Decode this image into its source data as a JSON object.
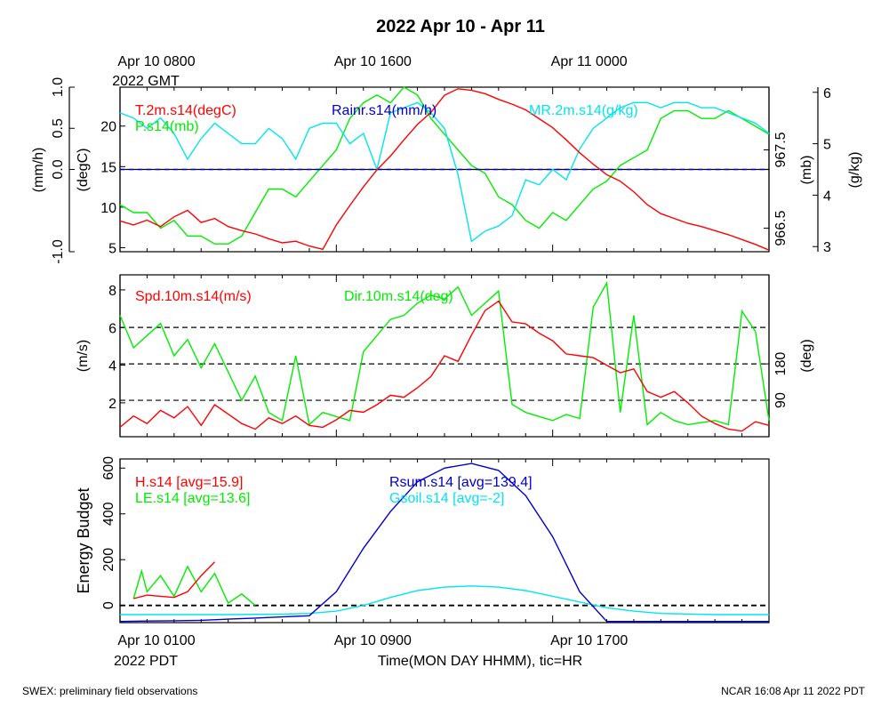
{
  "title": "2022 Apr 10 - Apr 11",
  "footer_left": "SWEX: preliminary field observations",
  "footer_right": "NCAR 16:08 Apr 11 2022 PDT",
  "top_time_labels": [
    {
      "hour": 0,
      "line1": "Apr 10 0800",
      "line2": "2022 GMT"
    },
    {
      "hour": 8,
      "line1": "Apr 10 1600",
      "line2": ""
    },
    {
      "hour": 16,
      "line1": "Apr 11 0000",
      "line2": ""
    }
  ],
  "bottom_time_labels": [
    {
      "hour": 0,
      "line1": "Apr 10 0100",
      "line2": "2022 PDT"
    },
    {
      "hour": 8,
      "line1": "Apr 10 0900",
      "line2": ""
    },
    {
      "hour": 16,
      "line1": "Apr 10 1700",
      "line2": ""
    }
  ],
  "xlabel": "Time(MON DAY HHMM), tic=HR",
  "colors": {
    "red": "#ff0000",
    "green": "#00ee00",
    "blue": "#0000cc",
    "cyan": "#00e5ee",
    "black": "#000000"
  },
  "chart_data": [
    {
      "type": "line",
      "id": "panel1",
      "xlim": [
        0,
        24
      ],
      "axes": {
        "left_outer": {
          "label": "(mm/h)",
          "ticks": [
            "1.0",
            "0.5",
            "0.0",
            "-1.0"
          ],
          "tick_values": [
            1.0,
            0.5,
            0.0,
            -1.0
          ],
          "lim": [
            -1.0,
            1.0
          ]
        },
        "left_inner": {
          "label": "(degC)",
          "ticks": [
            "20",
            "15",
            "10",
            "5"
          ],
          "tick_values": [
            20,
            15,
            10,
            5
          ],
          "lim": [
            4.5,
            24.8
          ]
        },
        "right_inner": {
          "label": "(mb)",
          "ticks": [
            "967.5",
            "966.5"
          ],
          "tick_values": [
            967.5,
            966.5
          ],
          "lim": [
            966.2,
            968.3
          ]
        },
        "right_outer": {
          "label": "(g/kg)",
          "ticks": [
            "6",
            "5",
            "4",
            "3"
          ],
          "tick_values": [
            6,
            5,
            4,
            3
          ],
          "lim": [
            2.9,
            6.1
          ]
        }
      },
      "zero_line": 0.0,
      "series": [
        {
          "name": "T.2m.s14(degC)",
          "color": "red",
          "axis": "left_inner",
          "x": [
            0,
            0.5,
            1,
            1.5,
            2,
            2.5,
            3,
            3.5,
            4,
            4.5,
            5,
            5.5,
            6,
            6.5,
            7,
            7.5,
            8,
            8.5,
            9,
            9.5,
            10,
            10.5,
            11,
            11.5,
            12,
            12.5,
            13,
            13.5,
            14,
            14.5,
            15,
            15.5,
            16,
            16.5,
            17,
            17.5,
            18,
            18.5,
            19,
            19.5,
            20,
            20.5,
            21,
            21.5,
            22,
            22.5,
            23,
            23.5,
            24
          ],
          "y": [
            8.3,
            7.8,
            8.4,
            7.6,
            8.8,
            9.6,
            8.1,
            8.6,
            7.6,
            7.1,
            6.7,
            6.1,
            5.6,
            5.8,
            5.2,
            4.8,
            7.8,
            10.2,
            12.5,
            14.6,
            16.3,
            18.3,
            20.2,
            21.7,
            23.8,
            24.6,
            24.4,
            24.0,
            23.3,
            22.7,
            22.0,
            20.9,
            19.8,
            18.3,
            16.7,
            15.3,
            14.0,
            13.2,
            11.9,
            10.3,
            9.2,
            8.6,
            8.0,
            7.6,
            7.1,
            6.6,
            6.0,
            5.4,
            4.7
          ]
        },
        {
          "name": "Rainr.s14(mm/h)",
          "color": "blue",
          "axis": "left_outer",
          "x": [
            0,
            24
          ],
          "y": [
            0.0,
            0.0
          ]
        },
        {
          "name": "MR.2m.s14(g/kg)",
          "color": "cyan",
          "axis": "right_outer",
          "x": [
            0,
            0.5,
            1,
            1.5,
            2,
            2.5,
            3,
            3.5,
            4,
            4.5,
            5,
            5.5,
            6,
            6.5,
            7,
            7.5,
            8,
            8.5,
            9,
            9.5,
            10,
            10.5,
            11,
            11.5,
            12,
            12.5,
            13,
            13.5,
            14,
            14.5,
            15,
            15.5,
            16,
            16.5,
            17,
            17.5,
            18,
            18.5,
            19,
            19.5,
            20,
            20.5,
            21,
            21.5,
            22,
            22.5,
            23,
            23.5,
            24
          ],
          "y": [
            5.6,
            5.5,
            5.3,
            5.5,
            5.2,
            4.7,
            5.1,
            5.4,
            5.2,
            5.0,
            5.0,
            5.3,
            5.1,
            4.7,
            5.3,
            5.4,
            5.4,
            5.0,
            5.2,
            4.5,
            5.6,
            5.7,
            5.8,
            5.6,
            5.3,
            4.4,
            3.1,
            3.3,
            3.4,
            3.6,
            4.3,
            4.2,
            4.5,
            4.3,
            4.9,
            5.3,
            5.5,
            5.7,
            5.8,
            5.8,
            5.7,
            5.8,
            5.8,
            5.7,
            5.7,
            5.6,
            5.5,
            5.4,
            5.2
          ]
        },
        {
          "name": "P.s14(mb)",
          "color": "green",
          "axis": "right_inner",
          "x": [
            0,
            0.5,
            1,
            1.5,
            2,
            2.5,
            3,
            3.5,
            4,
            4.5,
            5,
            5.5,
            6,
            6.5,
            7,
            7.5,
            8,
            8.5,
            9,
            9.5,
            10,
            10.5,
            11,
            11.5,
            12,
            12.5,
            13,
            13.5,
            14,
            14.5,
            15,
            15.5,
            16,
            16.5,
            17,
            17.5,
            18,
            18.5,
            19,
            19.5,
            20,
            20.5,
            21,
            21.5,
            22,
            22.5,
            23,
            23.5,
            24
          ],
          "y": [
            966.8,
            966.7,
            966.7,
            966.5,
            966.6,
            966.4,
            966.4,
            966.3,
            966.3,
            966.4,
            966.7,
            967.0,
            967.0,
            966.9,
            967.1,
            967.3,
            967.5,
            967.9,
            968.1,
            968.2,
            968.1,
            968.3,
            968.2,
            967.9,
            967.7,
            967.5,
            967.3,
            967.2,
            966.9,
            966.8,
            966.6,
            966.5,
            966.7,
            966.6,
            966.8,
            967.0,
            967.1,
            967.3,
            967.4,
            967.5,
            967.9,
            968.0,
            968.0,
            967.9,
            967.9,
            968.0,
            967.9,
            967.8,
            967.7
          ]
        }
      ]
    },
    {
      "type": "line",
      "id": "panel2",
      "xlim": [
        0,
        24
      ],
      "axes": {
        "left": {
          "label": "(m/s)",
          "ticks": [
            "8",
            "6",
            "4",
            "2"
          ],
          "tick_values": [
            8,
            6,
            4,
            2
          ],
          "lim": [
            0.2,
            8.8
          ]
        },
        "right": {
          "label": "(deg)",
          "ticks": [
            "180",
            "90"
          ],
          "tick_values": [
            180,
            90
          ],
          "lim": [
            0,
            400
          ]
        }
      },
      "dashed_lines_deg": [
        90,
        180,
        270
      ],
      "series": [
        {
          "name": "Spd.10m.s14(m/s)",
          "color": "red",
          "axis": "left",
          "x": [
            0,
            0.5,
            1,
            1.5,
            2,
            2.5,
            3,
            3.5,
            4,
            4.5,
            5,
            5.5,
            6,
            6.5,
            7,
            7.5,
            8,
            8.5,
            9,
            9.5,
            10,
            10.5,
            11,
            11.5,
            12,
            12.5,
            13,
            13.5,
            14,
            14.5,
            15,
            15.5,
            16,
            16.5,
            17,
            17.5,
            18,
            18.5,
            19,
            19.5,
            20,
            20.5,
            21,
            21.5,
            22,
            22.5,
            23,
            23.5,
            24
          ],
          "y": [
            0.7,
            1.3,
            0.9,
            1.6,
            1.2,
            1.8,
            0.8,
            1.9,
            1.4,
            0.9,
            0.6,
            1.2,
            0.9,
            1.3,
            0.8,
            0.7,
            1.1,
            1.6,
            1.5,
            1.9,
            2.4,
            2.3,
            2.8,
            3.4,
            4.5,
            4.2,
            5.6,
            6.9,
            7.4,
            6.3,
            6.2,
            5.7,
            5.3,
            4.6,
            4.5,
            4.4,
            4.0,
            3.6,
            3.8,
            2.6,
            2.3,
            2.6,
            2.0,
            1.3,
            0.9,
            0.6,
            0.5,
            1.0,
            0.8
          ]
        },
        {
          "name": "Dir.10m.s14(deg)",
          "color": "green",
          "axis": "right",
          "x": [
            0,
            0.5,
            1,
            1.5,
            2,
            2.5,
            3,
            3.5,
            4,
            4.5,
            5,
            5.5,
            6,
            6.5,
            7,
            7.5,
            8,
            8.5,
            9,
            9.5,
            10,
            10.5,
            11,
            11.5,
            12,
            12.5,
            13,
            13.5,
            14,
            14.5,
            15,
            15.5,
            16,
            16.5,
            17,
            17.5,
            18,
            18.5,
            19,
            19.5,
            20,
            20.5,
            21,
            21.5,
            22,
            22.5,
            23,
            23.5,
            24
          ],
          "y": [
            300,
            220,
            250,
            280,
            200,
            240,
            170,
            230,
            160,
            90,
            150,
            60,
            40,
            200,
            30,
            60,
            50,
            40,
            210,
            250,
            290,
            300,
            330,
            350,
            340,
            370,
            300,
            330,
            360,
            80,
            60,
            50,
            40,
            55,
            45,
            320,
            380,
            60,
            300,
            30,
            60,
            40,
            30,
            35,
            40,
            30,
            310,
            260,
            40
          ]
        }
      ]
    },
    {
      "type": "line",
      "id": "panel3",
      "xlim": [
        0,
        24
      ],
      "axes": {
        "left": {
          "label": "Energy Budget",
          "ticks": [
            "600",
            "400",
            "200",
            "0"
          ],
          "tick_values": [
            600,
            400,
            200,
            0
          ],
          "lim": [
            -75,
            640
          ]
        }
      },
      "zero_line": 0,
      "series": [
        {
          "name": "H.s14 [avg=15.9]",
          "color": "red",
          "axis": "left",
          "x": [
            0.5,
            1,
            1.5,
            2,
            2.5,
            3,
            3.5
          ],
          "y": [
            30,
            45,
            40,
            35,
            60,
            130,
            190
          ]
        },
        {
          "name": "LE.s14 [avg=13.6]",
          "color": "green",
          "axis": "left",
          "x": [
            0.5,
            0.8,
            1,
            1.5,
            2,
            2.5,
            3,
            3.5,
            4,
            4.5,
            5
          ],
          "y": [
            30,
            150,
            60,
            130,
            40,
            170,
            60,
            140,
            10,
            50,
            0
          ]
        },
        {
          "name": "Rsum.s14 [avg=139.4]",
          "color": "blue",
          "axis": "left",
          "x": [
            0,
            1,
            2,
            3,
            4,
            5,
            6,
            7,
            8,
            9,
            10,
            11,
            12,
            13,
            14,
            15,
            16,
            17,
            18,
            19,
            20,
            21,
            22,
            23,
            24
          ],
          "y": [
            -70,
            -68,
            -67,
            -65,
            -60,
            -55,
            -50,
            -45,
            60,
            250,
            410,
            540,
            600,
            620,
            590,
            480,
            300,
            60,
            -70,
            -70,
            -70,
            -70,
            -70,
            -70,
            -70
          ]
        },
        {
          "name": "Gsoil.s14 [avg=-2]",
          "color": "cyan",
          "axis": "left",
          "x": [
            0,
            2,
            4,
            6,
            7,
            8,
            9,
            10,
            11,
            12,
            13,
            14,
            15,
            16,
            17,
            18,
            19,
            20,
            22,
            24
          ],
          "y": [
            -40,
            -40,
            -40,
            -38,
            -35,
            -25,
            0,
            35,
            65,
            80,
            85,
            80,
            65,
            40,
            15,
            -10,
            -25,
            -35,
            -40,
            -40
          ]
        }
      ]
    }
  ]
}
